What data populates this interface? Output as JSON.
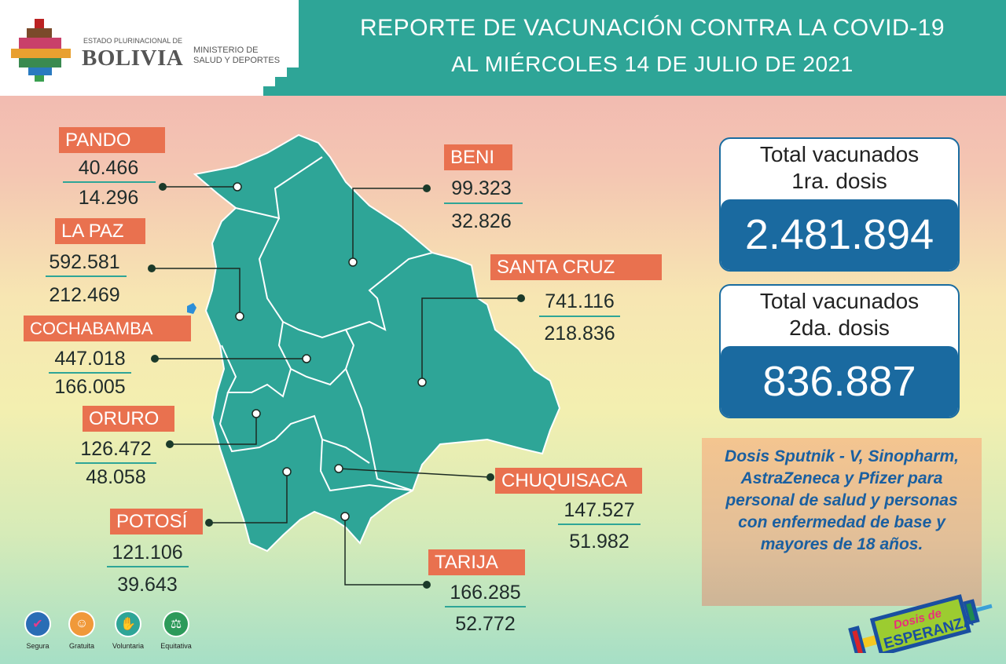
{
  "header": {
    "title_line1": "REPORTE DE VACUNACIÓN CONTRA LA COVID-19",
    "title_line2": "AL MIÉRCOLES 14 DE JULIO DE 2021",
    "logo": {
      "estado": "ESTADO PLURINACIONAL DE",
      "country": "BOLIVIA",
      "ministry_line1": "MINISTERIO DE",
      "ministry_line2": "SALUD Y DEPORTES"
    }
  },
  "departments": [
    {
      "name": "PANDO",
      "dose1": "40.466",
      "dose2": "14.296"
    },
    {
      "name": "BENI",
      "dose1": "99.323",
      "dose2": "32.826"
    },
    {
      "name": "LA PAZ",
      "dose1": "592.581",
      "dose2": "212.469"
    },
    {
      "name": "SANTA CRUZ",
      "dose1": "741.116",
      "dose2": "218.836"
    },
    {
      "name": "COCHABAMBA",
      "dose1": "447.018",
      "dose2": "166.005"
    },
    {
      "name": "ORURO",
      "dose1": "126.472",
      "dose2": "48.058"
    },
    {
      "name": "CHUQUISACA",
      "dose1": "147.527",
      "dose2": "51.982"
    },
    {
      "name": "POTOSÍ",
      "dose1": "121.106",
      "dose2": "39.643"
    },
    {
      "name": "TARIJA",
      "dose1": "166.285",
      "dose2": "52.772"
    }
  ],
  "totals": {
    "first": {
      "label1": "Total vacunados",
      "label2": "1ra. dosis",
      "value": "2.481.894"
    },
    "second": {
      "label1": "Total vacunados",
      "label2": "2da. dosis",
      "value": "836.887"
    }
  },
  "note": "Dosis Sputnik - V, Sinopharm, AstraZeneca y Pfizer para personal de salud y personas con enfermedad de base y mayores de 18 años.",
  "badges": [
    {
      "label": "Segura",
      "icon": "shield-check-icon",
      "color": "#2a6db5"
    },
    {
      "label": "Gratuita",
      "icon": "smiley-icon",
      "color": "#f0993a"
    },
    {
      "label": "Voluntaria",
      "icon": "raised-hand-icon",
      "color": "#2ea597"
    },
    {
      "label": "Equitativa",
      "icon": "scales-icon",
      "color": "#2d9a5a"
    }
  ],
  "campaign_logo": {
    "line1": "Dosis de",
    "line2": "ESPERANZA"
  },
  "colors": {
    "teal": "#2ea597",
    "orange": "#e9714f",
    "blue": "#1a6aa0"
  }
}
